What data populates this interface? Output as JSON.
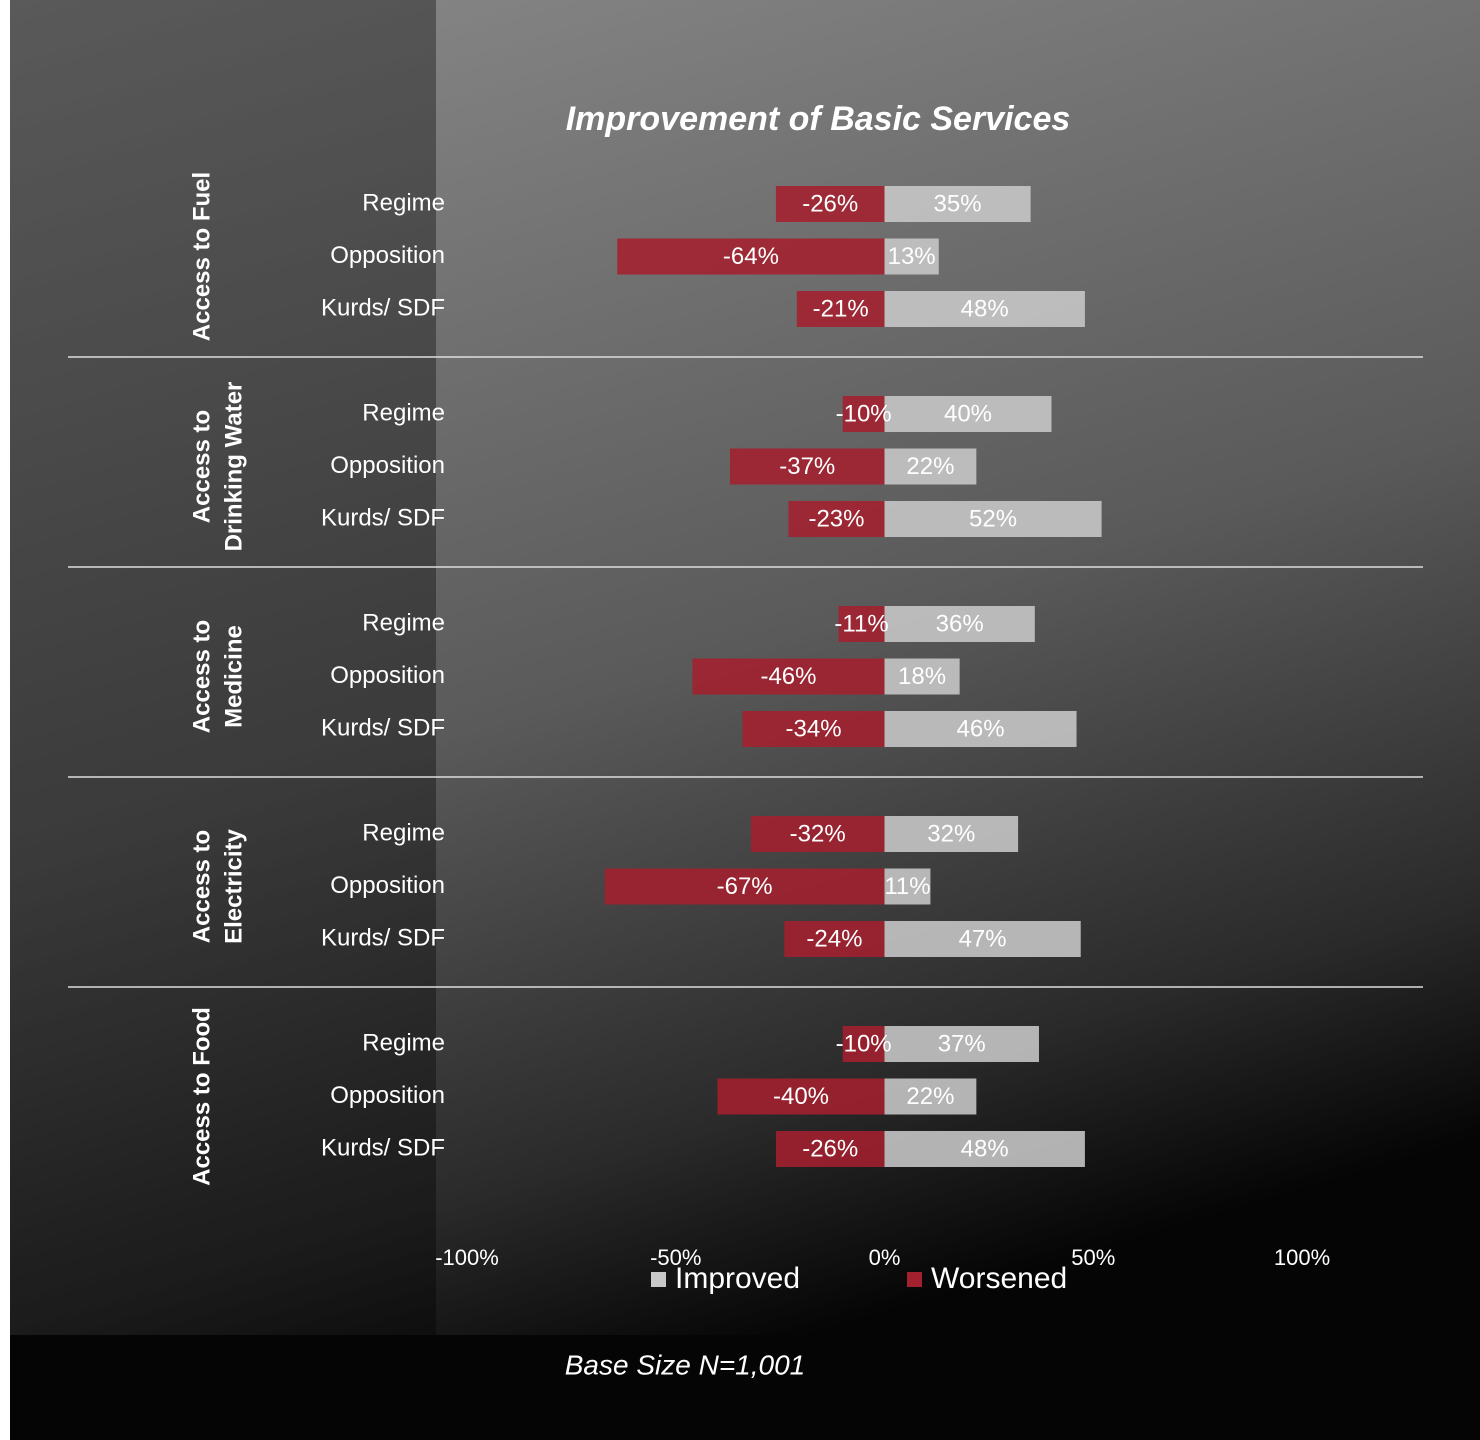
{
  "chart_data": {
    "type": "bar",
    "orientation": "horizontal",
    "title": "Improvement of Basic Services",
    "footnote": "Base Size N=1,001",
    "groups": [
      {
        "label": [
          "Access to Fuel"
        ],
        "categories": [
          "Regime",
          "Opposition",
          "Kurds/ SDF"
        ]
      },
      {
        "label": [
          "Access to",
          "Drinking Water"
        ],
        "categories": [
          "Regime",
          "Opposition",
          "Kurds/ SDF"
        ]
      },
      {
        "label": [
          "Access to",
          "Medicine"
        ],
        "categories": [
          "Regime",
          "Opposition",
          "Kurds/ SDF"
        ]
      },
      {
        "label": [
          "Access to",
          "Electricity"
        ],
        "categories": [
          "Regime",
          "Opposition",
          "Kurds/ SDF"
        ]
      },
      {
        "label": [
          "Access to Food"
        ],
        "categories": [
          "Regime",
          "Opposition",
          "Kurds/ SDF"
        ]
      }
    ],
    "series": [
      {
        "name": "Improved",
        "color": "#c8c8c8",
        "values": [
          35,
          13,
          48,
          40,
          22,
          52,
          36,
          18,
          46,
          32,
          11,
          47,
          37,
          22,
          48
        ],
        "value_labels": [
          "35%",
          "13%",
          "48%",
          "40%",
          "22%",
          "52%",
          "36%",
          "18%",
          "46%",
          "32%",
          "11%",
          "47%",
          "37%",
          "22%",
          "48%"
        ]
      },
      {
        "name": "Worsened",
        "color": "#a3202e",
        "values": [
          -26,
          -64,
          -21,
          -10,
          -37,
          -23,
          -11,
          -46,
          -34,
          -32,
          -67,
          -24,
          -10,
          -40,
          -26
        ],
        "value_labels": [
          "-26%",
          "-64%",
          "-21%",
          "-10%",
          "-37%",
          "-23%",
          "-11%",
          "-46%",
          "-34%",
          "-32%",
          "-67%",
          "-24%",
          "-10%",
          "-40%",
          "-26%"
        ]
      }
    ],
    "xlim": [
      -100,
      100
    ],
    "xticks": [
      {
        "value": -100,
        "label": "-100%"
      },
      {
        "value": -50,
        "label": "-50%"
      },
      {
        "value": 0,
        "label": "0%"
      },
      {
        "value": 50,
        "label": "50%"
      },
      {
        "value": 100,
        "label": "100%"
      }
    ],
    "legend": "bottom"
  }
}
